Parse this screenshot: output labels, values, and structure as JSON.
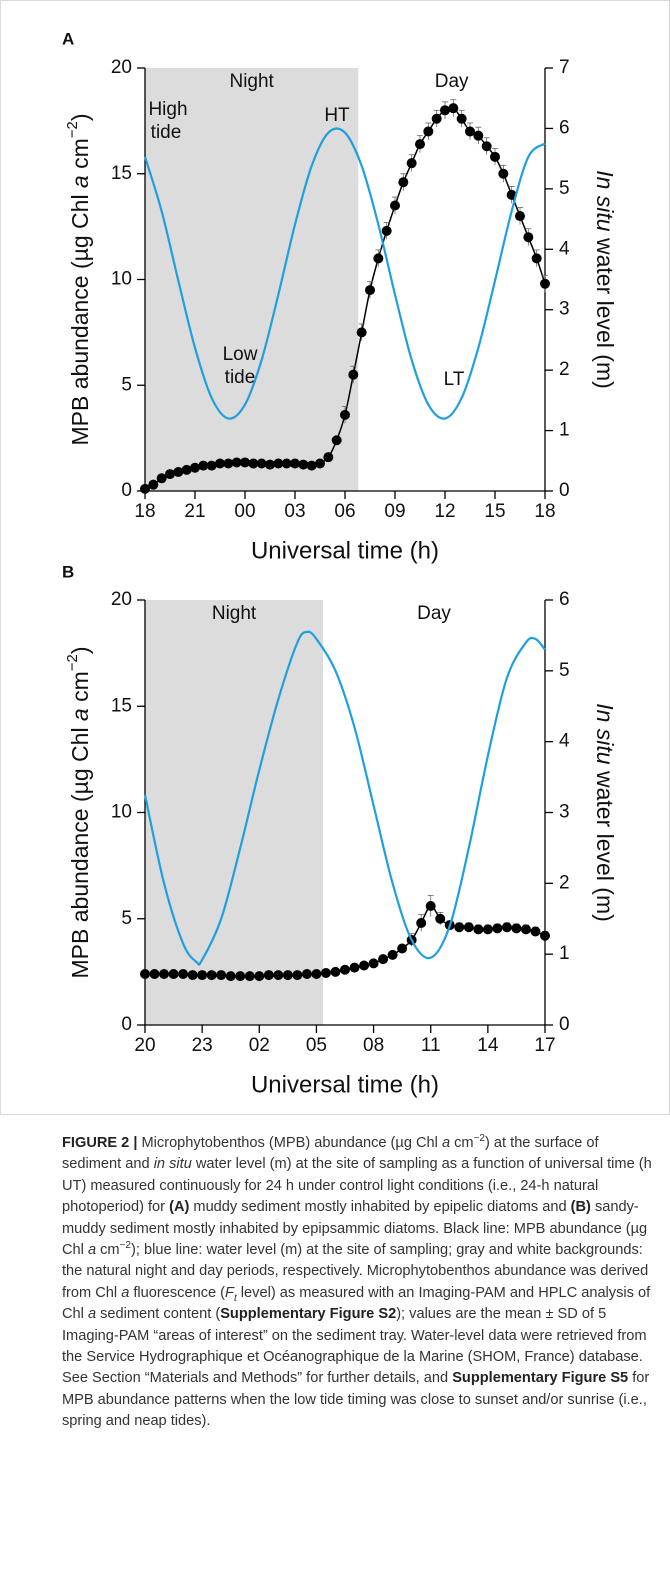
{
  "chart_data": [
    {
      "type": "line",
      "panel": "A",
      "xlabel": "Universal time (h)",
      "ylabel": [
        {
          "text": "MPB abundance (µg Chl "
        },
        {
          "text": "a",
          "style": "italic"
        },
        {
          "text": " cm"
        },
        {
          "text": "−2",
          "style": "sup"
        },
        {
          "text": ")"
        }
      ],
      "y2label": [
        {
          "text": "In situ",
          "style": "italic"
        },
        {
          "text": " water level (m)"
        }
      ],
      "xlim": [
        0,
        24
      ],
      "xticks": [
        {
          "value": 0,
          "label": "18"
        },
        {
          "value": 3,
          "label": "21"
        },
        {
          "value": 6,
          "label": "00"
        },
        {
          "value": 9,
          "label": "03"
        },
        {
          "value": 12,
          "label": "06"
        },
        {
          "value": 15,
          "label": "09"
        },
        {
          "value": 18,
          "label": "12"
        },
        {
          "value": 21,
          "label": "15"
        },
        {
          "value": 24,
          "label": "18"
        }
      ],
      "ylim": [
        0,
        20
      ],
      "yticks": [
        0,
        5,
        10,
        15,
        20
      ],
      "y2lim": [
        0,
        7
      ],
      "y2ticks": [
        0,
        1,
        2,
        3,
        4,
        5,
        6,
        7
      ],
      "periods": [
        {
          "label": "Night",
          "start": 0,
          "end": 12.8,
          "color": "#dcdcdc"
        },
        {
          "label": "Day",
          "start": 12.8,
          "end": 24,
          "color": "#ffffff"
        }
      ],
      "annotations": [
        "High",
        "tide",
        "HT",
        "Low",
        "tide",
        "LT"
      ],
      "series": [
        {
          "name": "MPB abundance",
          "style": "dots",
          "color": "#000000",
          "x": [
            0,
            0.5,
            1,
            1.5,
            2,
            2.5,
            3,
            3.5,
            4,
            4.5,
            5,
            5.5,
            6,
            6.5,
            7,
            7.5,
            8,
            8.5,
            9,
            9.5,
            10,
            10.5,
            11,
            11.5,
            12,
            12.5,
            13,
            13.5,
            14,
            14.5,
            15,
            15.5,
            16,
            16.5,
            17,
            17.5,
            18,
            18.5,
            19,
            19.5,
            20,
            20.5,
            21,
            21.5,
            22,
            22.5,
            23,
            23.5,
            24
          ],
          "values": [
            0.1,
            0.3,
            0.6,
            0.8,
            0.9,
            1.0,
            1.1,
            1.2,
            1.2,
            1.3,
            1.3,
            1.35,
            1.35,
            1.3,
            1.3,
            1.25,
            1.3,
            1.3,
            1.3,
            1.25,
            1.2,
            1.3,
            1.6,
            2.4,
            3.6,
            5.5,
            7.5,
            9.5,
            11.0,
            12.3,
            13.5,
            14.6,
            15.5,
            16.4,
            17.0,
            17.6,
            18.0,
            18.1,
            17.6,
            17.0,
            16.8,
            16.3,
            15.8,
            15.0,
            14.0,
            13.0,
            12.0,
            11.0,
            9.8
          ],
          "errors": [
            0.15,
            0.15,
            0.15,
            0.15,
            0.15,
            0.15,
            0.15,
            0.15,
            0.15,
            0.15,
            0.15,
            0.15,
            0.15,
            0.15,
            0.15,
            0.15,
            0.15,
            0.15,
            0.15,
            0.15,
            0.15,
            0.15,
            0.15,
            0.15,
            0.4,
            0.4,
            0.4,
            0.4,
            0.4,
            0.4,
            0.4,
            0.4,
            0.4,
            0.4,
            0.4,
            0.4,
            0.4,
            0.4,
            0.4,
            0.4,
            0.4,
            0.4,
            0.4,
            0.4,
            0.4,
            0.4,
            0.4,
            0.4,
            0.4
          ]
        },
        {
          "name": "Water level",
          "style": "line",
          "color": "#1fa0de",
          "axis": "y2",
          "x": [
            0,
            1,
            2,
            3,
            4,
            5,
            6,
            7,
            8,
            9,
            10,
            11,
            12,
            13,
            14,
            15,
            16,
            17,
            18,
            19,
            20,
            21,
            22,
            23,
            24
          ],
          "values": [
            5.53,
            4.63,
            3.48,
            2.37,
            1.54,
            1.2,
            1.43,
            2.17,
            3.25,
            4.41,
            5.38,
            5.93,
            5.93,
            5.38,
            4.41,
            3.25,
            2.17,
            1.43,
            1.2,
            1.54,
            2.37,
            3.48,
            4.63,
            5.53,
            5.75
          ]
        }
      ]
    },
    {
      "type": "line",
      "panel": "B",
      "xlabel": "Universal time (h)",
      "ylabel": [
        {
          "text": "MPB abundance (µg Chl "
        },
        {
          "text": "a",
          "style": "italic"
        },
        {
          "text": " cm"
        },
        {
          "text": "−2",
          "style": "sup"
        },
        {
          "text": ")"
        }
      ],
      "y2label": [
        {
          "text": "In situ",
          "style": "italic"
        },
        {
          "text": " water level (m)"
        }
      ],
      "xlim": [
        0,
        21
      ],
      "xticks": [
        {
          "value": 0,
          "label": "20"
        },
        {
          "value": 3,
          "label": "23"
        },
        {
          "value": 6,
          "label": "02"
        },
        {
          "value": 9,
          "label": "05"
        },
        {
          "value": 12,
          "label": "08"
        },
        {
          "value": 15,
          "label": "11"
        },
        {
          "value": 18,
          "label": "14"
        },
        {
          "value": 21,
          "label": "17"
        }
      ],
      "ylim": [
        0,
        20
      ],
      "yticks": [
        0,
        5,
        10,
        15,
        20
      ],
      "y2lim": [
        0,
        6
      ],
      "y2ticks": [
        0,
        1,
        2,
        3,
        4,
        5,
        6
      ],
      "periods": [
        {
          "label": "Night",
          "start": 0,
          "end": 9.35,
          "color": "#dcdcdc"
        },
        {
          "label": "Day",
          "start": 9.35,
          "end": 21,
          "color": "#ffffff"
        }
      ],
      "annotations": [],
      "series": [
        {
          "name": "MPB abundance",
          "style": "dots",
          "color": "#000000",
          "x": [
            0,
            0.5,
            1,
            1.5,
            2,
            2.5,
            3,
            3.5,
            4,
            4.5,
            5,
            5.5,
            6,
            6.5,
            7,
            7.5,
            8,
            8.5,
            9,
            9.5,
            10,
            10.5,
            11,
            11.5,
            12,
            12.5,
            13,
            13.5,
            14,
            14.5,
            15,
            15.5,
            16,
            16.5,
            17,
            17.5,
            18,
            18.5,
            19,
            19.5,
            20,
            20.5,
            21
          ],
          "values": [
            2.4,
            2.4,
            2.4,
            2.4,
            2.4,
            2.35,
            2.35,
            2.35,
            2.35,
            2.3,
            2.3,
            2.3,
            2.3,
            2.35,
            2.35,
            2.35,
            2.35,
            2.4,
            2.4,
            2.45,
            2.5,
            2.6,
            2.7,
            2.8,
            2.9,
            3.1,
            3.3,
            3.6,
            4.0,
            4.8,
            5.6,
            5.0,
            4.7,
            4.6,
            4.6,
            4.5,
            4.5,
            4.55,
            4.6,
            4.55,
            4.5,
            4.4,
            4.2
          ],
          "errors": [
            0.15,
            0.15,
            0.15,
            0.15,
            0.15,
            0.15,
            0.15,
            0.15,
            0.15,
            0.15,
            0.15,
            0.15,
            0.15,
            0.15,
            0.15,
            0.15,
            0.15,
            0.15,
            0.15,
            0.15,
            0.15,
            0.15,
            0.15,
            0.15,
            0.15,
            0.15,
            0.15,
            0.15,
            0.3,
            0.4,
            0.5,
            0.3,
            0.2,
            0.2,
            0.2,
            0.2,
            0.2,
            0.2,
            0.2,
            0.2,
            0.2,
            0.2,
            0.2
          ]
        },
        {
          "name": "Water level",
          "style": "line",
          "color": "#1fa0de",
          "axis": "y2",
          "x": [
            0,
            1,
            2,
            2.7,
            3,
            4,
            5,
            6,
            7,
            8,
            8.5,
            9,
            10,
            11,
            12,
            13,
            14,
            15,
            16,
            17,
            18,
            19,
            20,
            20.5,
            21
          ],
          "values": [
            3.25,
            2.0,
            1.15,
            0.89,
            0.92,
            1.5,
            2.5,
            3.6,
            4.6,
            5.4,
            5.55,
            5.45,
            5.0,
            4.2,
            3.1,
            2.0,
            1.2,
            0.95,
            1.4,
            2.5,
            3.8,
            4.9,
            5.4,
            5.45,
            5.3
          ]
        }
      ]
    }
  ],
  "caption": [
    {
      "text": "FIGURE 2 |",
      "style": "bold"
    },
    {
      "text": " Microphytobenthos (MPB) abundance (µg Chl "
    },
    {
      "text": "a",
      "style": "italic"
    },
    {
      "text": " cm"
    },
    {
      "text": "−2",
      "style": "sup"
    },
    {
      "text": ") at the surface of sediment and "
    },
    {
      "text": "in situ",
      "style": "italic"
    },
    {
      "text": " water level (m) at the site of sampling as a function of universal time (h UT) measured continuously for 24 h under control light conditions (i.e., 24-h natural photoperiod) for "
    },
    {
      "text": "(A)",
      "style": "bold"
    },
    {
      "text": " muddy sediment mostly inhabited by epipelic diatoms and "
    },
    {
      "text": "(B)",
      "style": "bold"
    },
    {
      "text": " sandy-muddy sediment mostly inhabited by epipsammic diatoms. Black line: MPB abundance (µg Chl "
    },
    {
      "text": "a",
      "style": "italic"
    },
    {
      "text": " cm"
    },
    {
      "text": "−2",
      "style": "sup"
    },
    {
      "text": "); blue line: water level (m) at the site of sampling; gray and white backgrounds: the natural night and day periods, respectively. Microphytobenthos abundance was derived from Chl "
    },
    {
      "text": "a",
      "style": "italic"
    },
    {
      "text": " fluorescence ("
    },
    {
      "text": "F",
      "style": "italic"
    },
    {
      "text": "t",
      "style": "sub"
    },
    {
      "text": " level) as measured with an Imaging-PAM and HPLC analysis of Chl "
    },
    {
      "text": "a",
      "style": "italic"
    },
    {
      "text": " sediment content ("
    },
    {
      "text": "Supplementary Figure S2",
      "style": "bold"
    },
    {
      "text": "); values are the mean ± SD of 5 Imaging-PAM “areas of interest” on the sediment tray. Water-level data were retrieved from the Service Hydrographique et Océanographique de la Marine (SHOM, France) database. See Section “Materials and Methods” for further details, and "
    },
    {
      "text": "Supplementary Figure S5",
      "style": "bold"
    },
    {
      "text": " for MPB abundance patterns when the low tide timing was close to sunset and/or sunrise (i.e., spring and neap tides)."
    }
  ]
}
